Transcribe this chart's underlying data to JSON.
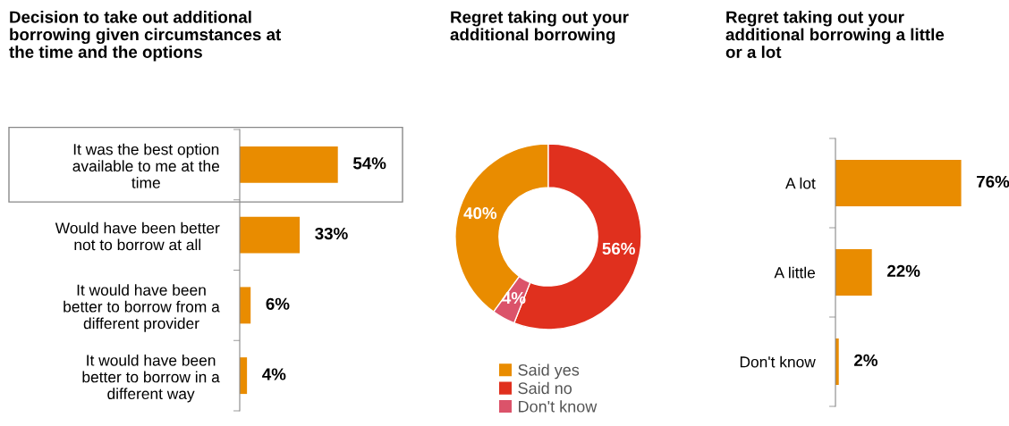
{
  "chart_data": [
    {
      "type": "bar",
      "orientation": "horizontal",
      "title": "Decision to take out additional borrowing given circumstances at the time and the options",
      "categories": [
        "It was the best option available to me at the time",
        "Would have been better not to borrow at all",
        "It would have been better to borrow from a different provider",
        "It would have been better to borrow in a different way"
      ],
      "values": [
        54,
        33,
        6,
        4
      ],
      "value_labels": [
        "54%",
        "33%",
        "6%",
        "4%"
      ],
      "color": "#e98c00"
    },
    {
      "type": "donut",
      "title": "Regret taking out your additional borrowing",
      "categories": [
        "Said yes",
        "Said no",
        "Don't know"
      ],
      "values": [
        40,
        56,
        4
      ],
      "value_labels": [
        "40%",
        "56%",
        "4%"
      ],
      "colors": [
        "#e98c00",
        "#e0301e",
        "#db536a"
      ],
      "legend": "bottom"
    },
    {
      "type": "bar",
      "orientation": "horizontal",
      "title": "Regret taking out your additional borrowing a little or a lot",
      "categories": [
        "A lot",
        "A little",
        "Don't know"
      ],
      "values": [
        76,
        22,
        2
      ],
      "value_labels": [
        "76%",
        "22%",
        "2%"
      ],
      "color": "#e98c00"
    }
  ]
}
